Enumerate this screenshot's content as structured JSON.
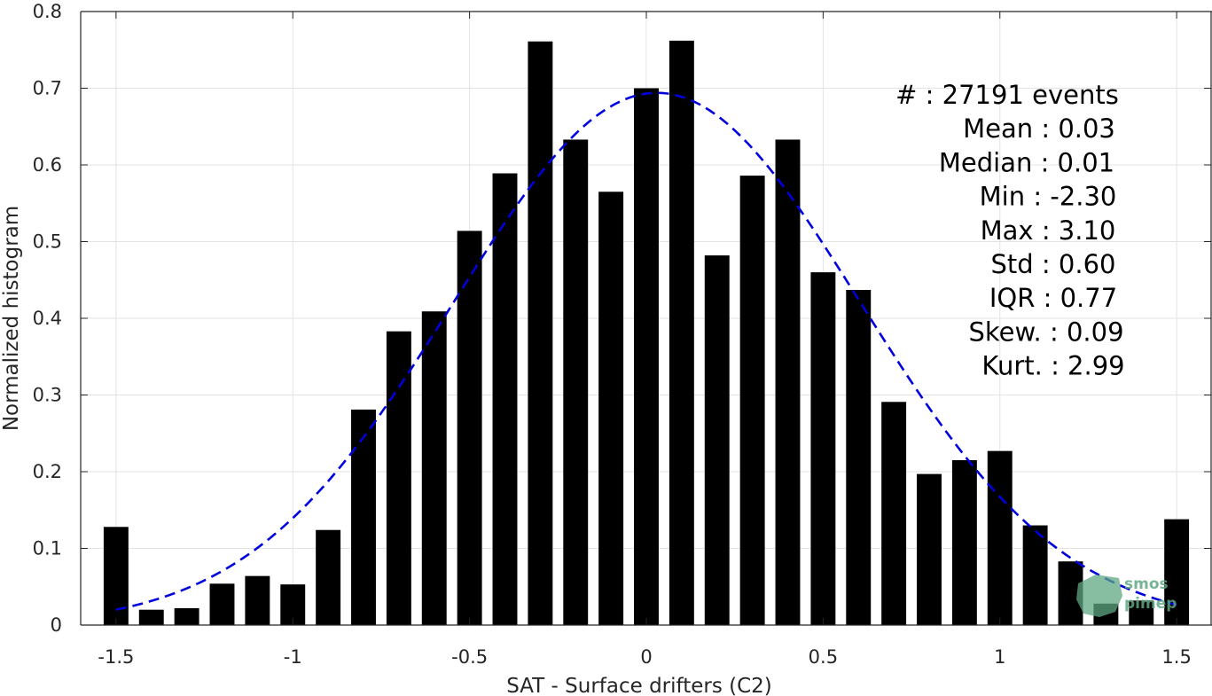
{
  "chart_data": {
    "type": "bar",
    "xlabel": "SAT - Surface drifters (C2)",
    "ylabel": "Normalized histogram",
    "xlim": [
      -1.6,
      1.6
    ],
    "ylim": [
      0,
      0.8
    ],
    "x_ticks": [
      -1.5,
      -1,
      -0.5,
      0,
      0.5,
      1,
      1.5
    ],
    "x_tick_labels": [
      "-1.5",
      "-1",
      "-0.5",
      "0",
      "0.5",
      "1",
      "1.5"
    ],
    "y_ticks": [
      0,
      0.1,
      0.2,
      0.3,
      0.4,
      0.5,
      0.6,
      0.7,
      0.8
    ],
    "y_tick_labels": [
      "0",
      "0.1",
      "0.2",
      "0.3",
      "0.4",
      "0.5",
      "0.6",
      "0.7",
      "0.8"
    ],
    "grid": true,
    "bar_color": "#000000",
    "curve_color": "#0000dd",
    "bars": {
      "x": [
        -1.5,
        -1.4,
        -1.3,
        -1.2,
        -1.1,
        -1.0,
        -0.9,
        -0.8,
        -0.7,
        -0.6,
        -0.5,
        -0.4,
        -0.3,
        -0.2,
        -0.1,
        0.0,
        0.1,
        0.2,
        0.3,
        0.4,
        0.5,
        0.6,
        0.7,
        0.8,
        0.9,
        1.0,
        1.1,
        1.2,
        1.3,
        1.4,
        1.5
      ],
      "values": [
        0.128,
        0.02,
        0.022,
        0.054,
        0.064,
        0.053,
        0.124,
        0.281,
        0.383,
        0.409,
        0.514,
        0.589,
        0.761,
        0.633,
        0.565,
        0.7,
        0.762,
        0.482,
        0.586,
        0.633,
        0.46,
        0.437,
        0.291,
        0.197,
        0.215,
        0.227,
        0.13,
        0.083,
        0.028,
        0.032,
        0.138
      ],
      "width": 0.07
    },
    "fit_curve": {
      "type": "gaussian",
      "style": "dashed",
      "mean": 0.03,
      "std": 0.575,
      "peak": 0.694,
      "x_range": [
        -1.5,
        1.5
      ]
    },
    "stats_text": [
      {
        "label": "#  ",
        "value": ": 27191 events"
      },
      {
        "label": "Mean ",
        "value": ": 0.03"
      },
      {
        "label": "Median ",
        "value": ": 0.01"
      },
      {
        "label": "Min ",
        "value": ": -2.30"
      },
      {
        "label": "Max ",
        "value": ": 3.10"
      },
      {
        "label": "Std ",
        "value": ": 0.60"
      },
      {
        "label": "IQR ",
        "value": ": 0.77"
      },
      {
        "label": "Skew. ",
        "value": ": 0.09"
      },
      {
        "label": "Kurt. ",
        "value": ": 2.99"
      }
    ]
  },
  "logo": {
    "line1": "smos",
    "line2": "pimep",
    "color": "#5fa882"
  }
}
